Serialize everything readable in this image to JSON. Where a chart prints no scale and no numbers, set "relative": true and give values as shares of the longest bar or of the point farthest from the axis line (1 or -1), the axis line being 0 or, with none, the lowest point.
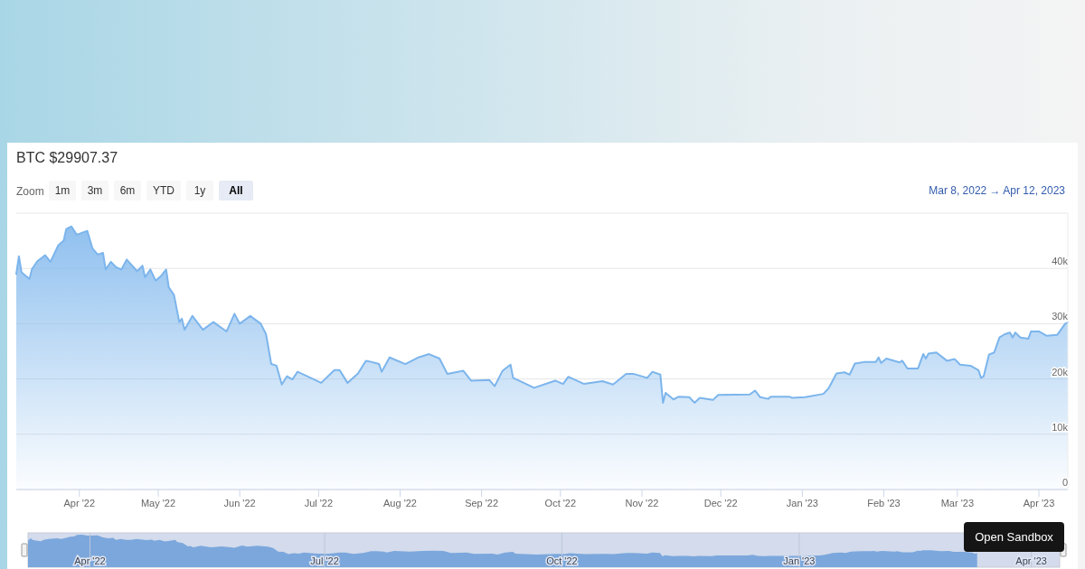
{
  "chart_data": [
    {
      "type": "area",
      "title": "BTC $29907.37",
      "annotations": [
        "Zoom",
        "1m",
        "3m",
        "6m",
        "YTD",
        "1y",
        "All",
        "Mar 8, 2022 → Apr 12, 2023",
        "Open Sandbox"
      ],
      "x": [
        "2022-03-08",
        "2022-03-09",
        "2022-03-10",
        "2022-03-13",
        "2022-03-14",
        "2022-03-16",
        "2022-03-19",
        "2022-03-21",
        "2022-03-24",
        "2022-03-26",
        "2022-03-27",
        "2022-03-29",
        "2022-03-31",
        "2022-04-04",
        "2022-04-06",
        "2022-04-08",
        "2022-04-10",
        "2022-04-11",
        "2022-04-13",
        "2022-04-15",
        "2022-04-17",
        "2022-04-19",
        "2022-04-23",
        "2022-04-25",
        "2022-04-26",
        "2022-04-28",
        "2022-04-30",
        "2022-05-02",
        "2022-05-04",
        "2022-05-05",
        "2022-05-07",
        "2022-05-09",
        "2022-05-10",
        "2022-05-11",
        "2022-05-14",
        "2022-05-18",
        "2022-05-22",
        "2022-05-27",
        "2022-05-30",
        "2022-06-01",
        "2022-06-05",
        "2022-06-09",
        "2022-06-11",
        "2022-06-13",
        "2022-06-15",
        "2022-06-17",
        "2022-06-19",
        "2022-06-21",
        "2022-06-23",
        "2022-06-28",
        "2022-07-02",
        "2022-07-07",
        "2022-07-09",
        "2022-07-12",
        "2022-07-16",
        "2022-07-19",
        "2022-07-21",
        "2022-07-24",
        "2022-07-25",
        "2022-07-28",
        "2022-08-03",
        "2022-08-08",
        "2022-08-12",
        "2022-08-16",
        "2022-08-19",
        "2022-08-25",
        "2022-08-28",
        "2022-09-04",
        "2022-09-06",
        "2022-09-09",
        "2022-09-12",
        "2022-09-13",
        "2022-09-21",
        "2022-09-29",
        "2022-10-02",
        "2022-10-04",
        "2022-10-10",
        "2022-10-17",
        "2022-10-21",
        "2022-10-26",
        "2022-10-29",
        "2022-11-03",
        "2022-11-05",
        "2022-11-08",
        "2022-11-09",
        "2022-11-10",
        "2022-11-13",
        "2022-11-15",
        "2022-11-19",
        "2022-11-21",
        "2022-11-23",
        "2022-11-28",
        "2022-11-30",
        "2022-12-12",
        "2022-12-14",
        "2022-12-16",
        "2022-12-19",
        "2022-12-20",
        "2022-12-27",
        "2022-12-28",
        "2023-01-02",
        "2023-01-09",
        "2023-01-11",
        "2023-01-14",
        "2023-01-17",
        "2023-01-19",
        "2023-01-21",
        "2023-01-25",
        "2023-01-29",
        "2023-01-30",
        "2023-01-31",
        "2023-02-02",
        "2023-02-07",
        "2023-02-08",
        "2023-02-10",
        "2023-02-14",
        "2023-02-16",
        "2023-02-17",
        "2023-02-18",
        "2023-02-21",
        "2023-02-25",
        "2023-02-28",
        "2023-03-02",
        "2023-03-06",
        "2023-03-09",
        "2023-03-10",
        "2023-03-11",
        "2023-03-13",
        "2023-03-15",
        "2023-03-17",
        "2023-03-19",
        "2023-03-21",
        "2023-03-22",
        "2023-03-23",
        "2023-03-25",
        "2023-03-28",
        "2023-03-29",
        "2023-04-01",
        "2023-04-04",
        "2023-04-08",
        "2023-04-11",
        "2023-04-12"
      ],
      "series": [
        {
          "color": "#7cb5ec",
          "values": [
            39000,
            42200,
            39300,
            38100,
            39900,
            41300,
            42400,
            41200,
            44200,
            45000,
            47100,
            47600,
            46100,
            46800,
            43600,
            42500,
            42800,
            39800,
            41200,
            40200,
            39800,
            41600,
            39500,
            40500,
            38400,
            39800,
            37800,
            38600,
            39800,
            36600,
            35200,
            30300,
            30900,
            28900,
            31400,
            28900,
            30300,
            28600,
            31800,
            30000,
            31400,
            30000,
            28100,
            22700,
            22400,
            19000,
            20500,
            19900,
            21300,
            20200,
            19300,
            21600,
            21600,
            19300,
            21000,
            23300,
            23100,
            22700,
            21300,
            23900,
            22700,
            23900,
            24500,
            23700,
            20900,
            21500,
            19700,
            19800,
            18700,
            21500,
            22600,
            20200,
            18400,
            19700,
            19100,
            20400,
            19100,
            19600,
            19000,
            20900,
            20900,
            20200,
            21300,
            20800,
            15700,
            17500,
            16300,
            16800,
            16700,
            15700,
            16600,
            16200,
            17100,
            17200,
            17900,
            16700,
            16400,
            16800,
            16800,
            16600,
            16700,
            17300,
            18300,
            21000,
            21200,
            20800,
            22800,
            23100,
            23100,
            23900,
            22900,
            23700,
            23000,
            23300,
            21900,
            21900,
            24500,
            23700,
            24600,
            24800,
            23300,
            23600,
            22600,
            22400,
            21600,
            20200,
            20500,
            24400,
            24800,
            27500,
            28100,
            28400,
            27500,
            28400,
            27500,
            27300,
            28600,
            28600,
            27800,
            28000,
            30000,
            30200
          ]
        }
      ],
      "xlim": [
        "2022-03-08",
        "2023-04-12"
      ],
      "xticks": [
        {
          "value": "2022-04-01",
          "label": "Apr '22"
        },
        {
          "value": "2022-05-01",
          "label": "May '22"
        },
        {
          "value": "2022-06-01",
          "label": "Jun '22"
        },
        {
          "value": "2022-07-01",
          "label": "Jul '22"
        },
        {
          "value": "2022-08-01",
          "label": "Aug '22"
        },
        {
          "value": "2022-09-01",
          "label": "Sep '22"
        },
        {
          "value": "2022-10-01",
          "label": "Oct '22"
        },
        {
          "value": "2022-11-01",
          "label": "Nov '22"
        },
        {
          "value": "2022-12-01",
          "label": "Dec '22"
        },
        {
          "value": "2023-01-01",
          "label": "Jan '23"
        },
        {
          "value": "2023-02-01",
          "label": "Feb '23"
        },
        {
          "value": "2023-03-01",
          "label": "Mar '23"
        },
        {
          "value": "2023-04-01",
          "label": "Apr '23"
        }
      ],
      "ylim": [
        0,
        50000
      ],
      "yticks": [
        0,
        {
          "value": 10000,
          "label": "10k"
        },
        {
          "value": 20000,
          "label": "20k"
        },
        {
          "value": 30000,
          "label": "30k"
        },
        {
          "value": 40000,
          "label": "40k"
        },
        {
          "value": 50000,
          "label": null
        }
      ],
      "grid": "y"
    },
    {
      "type": "area",
      "tick_labels": "x",
      "relative": true,
      "x": [
        "2022-03-08",
        "2022-03-09",
        "2022-03-10",
        "2022-03-13",
        "2022-03-14",
        "2022-03-16",
        "2022-03-19",
        "2022-03-21",
        "2022-03-24",
        "2022-03-26",
        "2022-03-27",
        "2022-03-29",
        "2022-03-31",
        "2022-04-04",
        "2022-04-06",
        "2022-04-08",
        "2022-04-10",
        "2022-04-11",
        "2022-04-13",
        "2022-04-15",
        "2022-04-17",
        "2022-04-19",
        "2022-04-23",
        "2022-04-25",
        "2022-04-26",
        "2022-04-28",
        "2022-04-30",
        "2022-05-02",
        "2022-05-04",
        "2022-05-05",
        "2022-05-07",
        "2022-05-09",
        "2022-05-10",
        "2022-05-11",
        "2022-05-14",
        "2022-05-18",
        "2022-05-22",
        "2022-05-27",
        "2022-05-30",
        "2022-06-01",
        "2022-06-05",
        "2022-06-09",
        "2022-06-11",
        "2022-06-13",
        "2022-06-15",
        "2022-06-17",
        "2022-06-19",
        "2022-06-21",
        "2022-06-23",
        "2022-06-28",
        "2022-07-02",
        "2022-07-07",
        "2022-07-09",
        "2022-07-12",
        "2022-07-16",
        "2022-07-19",
        "2022-07-21",
        "2022-07-24",
        "2022-07-25",
        "2022-07-28",
        "2022-08-03",
        "2022-08-08",
        "2022-08-12",
        "2022-08-16",
        "2022-08-19",
        "2022-08-25",
        "2022-08-28",
        "2022-09-04",
        "2022-09-06",
        "2022-09-09",
        "2022-09-12",
        "2022-09-13",
        "2022-09-21",
        "2022-09-29",
        "2022-10-02",
        "2022-10-04",
        "2022-10-10",
        "2022-10-17",
        "2022-10-21",
        "2022-10-26",
        "2022-10-29",
        "2022-11-03",
        "2022-11-05",
        "2022-11-08",
        "2022-11-09",
        "2022-11-10",
        "2022-11-13",
        "2022-11-15",
        "2022-11-19",
        "2022-11-21",
        "2022-11-23",
        "2022-11-28",
        "2022-11-30",
        "2022-12-12",
        "2022-12-14",
        "2022-12-16",
        "2022-12-19",
        "2022-12-20",
        "2022-12-27",
        "2022-12-28",
        "2023-01-02",
        "2023-01-09",
        "2023-01-11",
        "2023-01-14",
        "2023-01-17",
        "2023-01-19",
        "2023-01-21",
        "2023-01-25",
        "2023-01-29",
        "2023-01-30",
        "2023-01-31",
        "2023-02-02",
        "2023-02-07",
        "2023-02-08",
        "2023-02-10",
        "2023-02-14",
        "2023-02-16",
        "2023-02-17",
        "2023-02-18",
        "2023-02-21",
        "2023-02-25",
        "2023-02-28",
        "2023-03-02",
        "2023-03-06",
        "2023-03-09",
        "2023-03-10",
        "2023-03-11"
      ],
      "series": [
        {
          "color": "#7ba7dc",
          "values": [
            0.82,
            0.89,
            0.83,
            0.8,
            0.84,
            0.87,
            0.89,
            0.87,
            0.93,
            0.95,
            0.99,
            1,
            0.97,
            0.98,
            0.92,
            0.89,
            0.9,
            0.84,
            0.87,
            0.84,
            0.84,
            0.87,
            0.83,
            0.85,
            0.81,
            0.84,
            0.79,
            0.81,
            0.84,
            0.77,
            0.74,
            0.64,
            0.65,
            0.61,
            0.66,
            0.61,
            0.64,
            0.6,
            0.67,
            0.63,
            0.66,
            0.63,
            0.59,
            0.48,
            0.47,
            0.4,
            0.43,
            0.42,
            0.45,
            0.42,
            0.41,
            0.45,
            0.45,
            0.41,
            0.44,
            0.49,
            0.49,
            0.48,
            0.45,
            0.5,
            0.48,
            0.5,
            0.51,
            0.5,
            0.44,
            0.45,
            0.41,
            0.42,
            0.39,
            0.45,
            0.47,
            0.42,
            0.39,
            0.41,
            0.4,
            0.43,
            0.4,
            0.41,
            0.4,
            0.44,
            0.44,
            0.42,
            0.45,
            0.44,
            0.33,
            0.37,
            0.34,
            0.35,
            0.35,
            0.33,
            0.35,
            0.34,
            0.36,
            0.36,
            0.38,
            0.35,
            0.34,
            0.35,
            0.35,
            0.35,
            0.35,
            0.36,
            0.38,
            0.44,
            0.45,
            0.44,
            0.48,
            0.49,
            0.49,
            0.5,
            0.48,
            0.5,
            0.48,
            0.49,
            0.46,
            0.46,
            0.51,
            0.5,
            0.52,
            0.52,
            0.49,
            0.5,
            0.47,
            0.47,
            0.45,
            0.42,
            0.43
          ]
        }
      ],
      "xlim": [
        "2022-03-08",
        "2023-04-12"
      ],
      "xticks": [
        {
          "value": "2022-04-01",
          "label": "Apr '22"
        },
        {
          "value": "2022-07-01",
          "label": "Jul '22"
        },
        {
          "value": "2022-10-01",
          "label": "Oct '22"
        },
        {
          "value": "2023-01-01",
          "label": "Jan '23"
        },
        {
          "value": "2023-04-01",
          "label": "Apr '23"
        }
      ],
      "grid": "x"
    }
  ]
}
